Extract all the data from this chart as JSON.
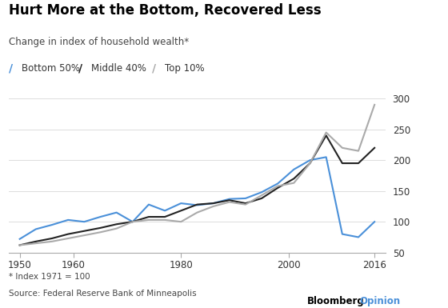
{
  "title": "Hurt More at the Bottom, Recovered Less",
  "subtitle": "Change in index of household wealth*",
  "footnote": "* Index 1971 = 100",
  "source": "Source: Federal Reserve Bank of Minneapolis",
  "xlim": [
    1948,
    2018
  ],
  "ylim": [
    50,
    310
  ],
  "yticks": [
    50,
    100,
    150,
    200,
    250,
    300
  ],
  "xticks": [
    1950,
    1960,
    1980,
    2000,
    2016
  ],
  "xtick_labels": [
    "1950",
    "1960",
    "1980",
    "2000",
    "2016"
  ],
  "legend_labels": [
    "Bottom 50%",
    "Middle 40%",
    "Top 10%"
  ],
  "bottom50_x": [
    1950,
    1953,
    1956,
    1959,
    1962,
    1965,
    1968,
    1971,
    1974,
    1977,
    1980,
    1983,
    1986,
    1989,
    1992,
    1995,
    1998,
    2001,
    2004,
    2007,
    2010,
    2013,
    2016
  ],
  "bottom50_y": [
    72,
    88,
    95,
    103,
    100,
    108,
    115,
    100,
    128,
    118,
    130,
    127,
    130,
    137,
    138,
    148,
    162,
    185,
    200,
    205,
    80,
    75,
    100
  ],
  "middle40_x": [
    1950,
    1953,
    1956,
    1959,
    1962,
    1965,
    1968,
    1971,
    1974,
    1977,
    1980,
    1983,
    1986,
    1989,
    1992,
    1995,
    1998,
    2001,
    2004,
    2007,
    2010,
    2013,
    2016
  ],
  "middle40_y": [
    62,
    68,
    73,
    80,
    85,
    90,
    96,
    100,
    108,
    108,
    118,
    128,
    130,
    135,
    130,
    138,
    155,
    170,
    195,
    240,
    195,
    195,
    220
  ],
  "top10_x": [
    1950,
    1953,
    1956,
    1959,
    1962,
    1965,
    1968,
    1971,
    1974,
    1977,
    1980,
    1983,
    1986,
    1989,
    1992,
    1995,
    1998,
    2001,
    2004,
    2007,
    2010,
    2013,
    2016
  ],
  "top10_y": [
    62,
    65,
    68,
    73,
    78,
    83,
    89,
    100,
    103,
    103,
    100,
    115,
    125,
    132,
    128,
    143,
    158,
    163,
    195,
    245,
    220,
    215,
    290
  ],
  "bg_color": "#ffffff",
  "plot_bg_color": "#ffffff",
  "grid_color": "#dddddd",
  "bottom50_color": "#4a90d9",
  "middle40_color": "#222222",
  "top10_color": "#aaaaaa"
}
